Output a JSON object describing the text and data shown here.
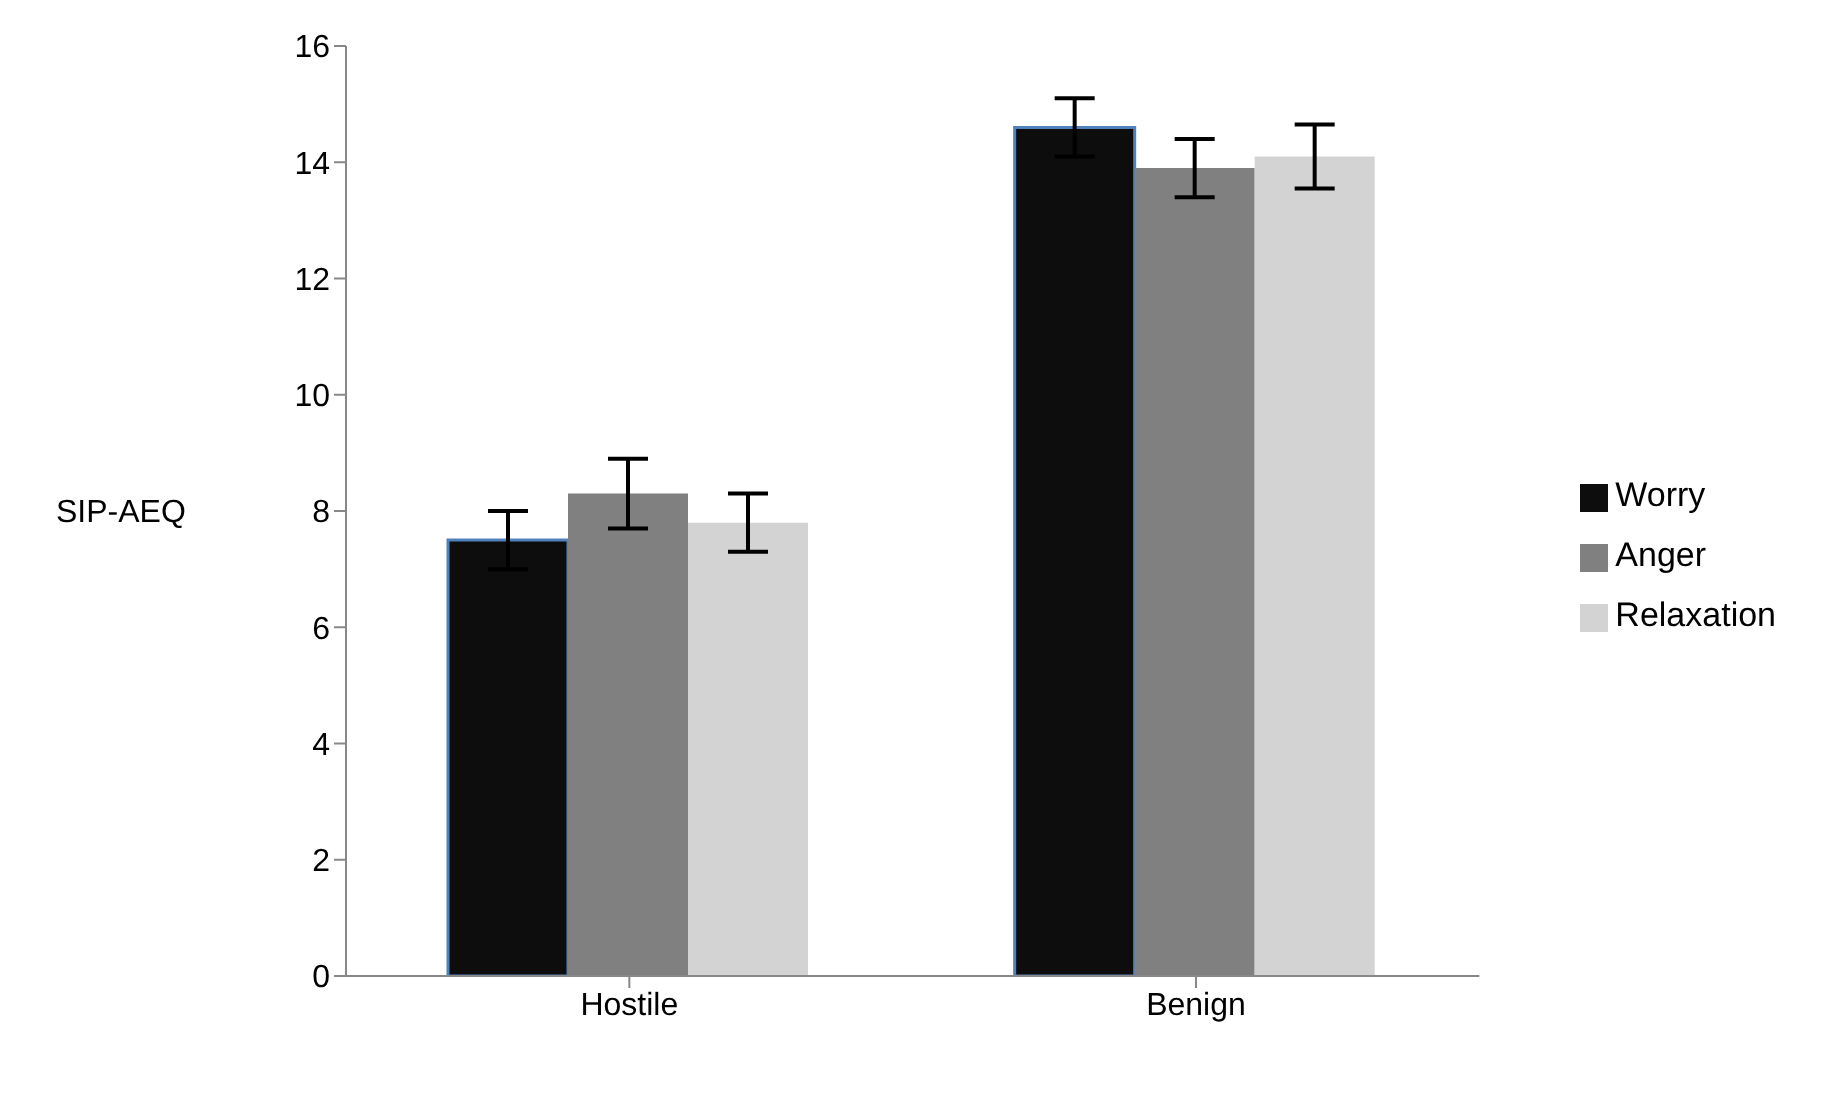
{
  "chart_data": {
    "type": "bar",
    "ylabel": "SIP-AEQ",
    "categories": [
      "Hostile",
      "Benign"
    ],
    "series": [
      {
        "name": "Worry",
        "color": "#0d0d0d",
        "values": [
          7.5,
          14.6
        ],
        "errors": [
          0.5,
          0.5
        ]
      },
      {
        "name": "Anger",
        "color": "#808080",
        "values": [
          8.3,
          13.9
        ],
        "errors": [
          0.6,
          0.5
        ]
      },
      {
        "name": "Relaxation",
        "color": "#d3d3d3",
        "values": [
          7.8,
          14.1
        ],
        "errors": [
          0.5,
          0.55
        ]
      }
    ],
    "ylim": [
      0,
      16
    ],
    "yticks": [
      0,
      2,
      4,
      6,
      8,
      10,
      12,
      14,
      16
    ],
    "grid": false,
    "legend": "right"
  }
}
